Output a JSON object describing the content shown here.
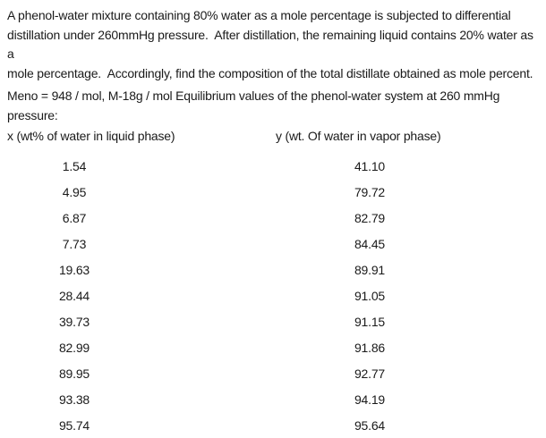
{
  "doc": {
    "background_color": "#ffffff",
    "text_color": "#1a1a1a",
    "paragraph1_lines": [
      "A phenol-water mixture containing 80% water as a mole percentage is subjected to differential",
      "distillation under 260mmHg pressure.  After distillation, the remaining liquid contains 20% water as a",
      "mole percentage.  Accordingly, find the composition of the total distillate obtained as mole percent."
    ],
    "paragraph2_lines": [
      "Meno = 948 / mol, M-18g / mol Equilibrium values of the phenol-water system at 260 mmHg",
      "pressure:"
    ],
    "table": {
      "headers": {
        "x": "x (wt% of water in liquid phase)",
        "y": "y (wt. Of water in vapor phase)"
      },
      "rows": [
        {
          "x": "1.54",
          "y": "41.10"
        },
        {
          "x": "4.95",
          "y": "79.72"
        },
        {
          "x": "6.87",
          "y": "82.79"
        },
        {
          "x": "7.73",
          "y": "84.45"
        },
        {
          "x": "19.63",
          "y": "89.91"
        },
        {
          "x": "28.44",
          "y": "91.05"
        },
        {
          "x": "39.73",
          "y": "91.15"
        },
        {
          "x": "82.99",
          "y": "91.86"
        },
        {
          "x": "89.95",
          "y": "92.77"
        },
        {
          "x": "93.38",
          "y": "94.19"
        },
        {
          "x": "95.74",
          "y": "95.64"
        }
      ]
    }
  }
}
